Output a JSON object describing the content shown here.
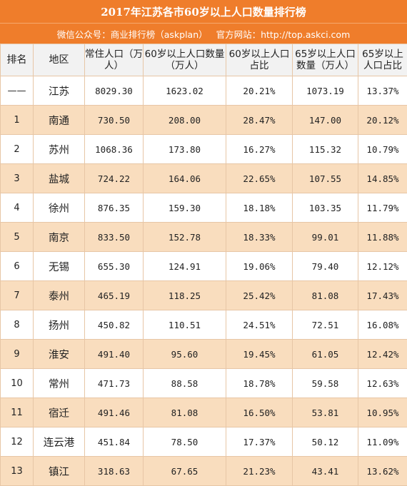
{
  "title": "2017年江苏各市60岁以上人口数量排行榜",
  "subtitle": {
    "wechat": "微信公众号：商业排行榜（askplan）",
    "website": "官方网站：http://top.askci.com"
  },
  "headers": [
    "排名",
    "地区",
    "常住人口（万人）",
    "60岁以上人口数量（万人）",
    "60岁以上人口占比",
    "65岁以上人口数量（万人）",
    "65岁以上人口占比"
  ],
  "rows": [
    {
      "rank": "——",
      "region": "江苏",
      "pop": "8029.30",
      "pop60": "1623.02",
      "ratio60": "20.21%",
      "pop65": "1073.19",
      "ratio65": "13.37%"
    },
    {
      "rank": "1",
      "region": "南通",
      "pop": "730.50",
      "pop60": "208.00",
      "ratio60": "28.47%",
      "pop65": "147.00",
      "ratio65": "20.12%"
    },
    {
      "rank": "2",
      "region": "苏州",
      "pop": "1068.36",
      "pop60": "173.80",
      "ratio60": "16.27%",
      "pop65": "115.32",
      "ratio65": "10.79%"
    },
    {
      "rank": "3",
      "region": "盐城",
      "pop": "724.22",
      "pop60": "164.06",
      "ratio60": "22.65%",
      "pop65": "107.55",
      "ratio65": "14.85%"
    },
    {
      "rank": "4",
      "region": "徐州",
      "pop": "876.35",
      "pop60": "159.30",
      "ratio60": "18.18%",
      "pop65": "103.35",
      "ratio65": "11.79%"
    },
    {
      "rank": "5",
      "region": "南京",
      "pop": "833.50",
      "pop60": "152.78",
      "ratio60": "18.33%",
      "pop65": "99.01",
      "ratio65": "11.88%"
    },
    {
      "rank": "6",
      "region": "无锡",
      "pop": "655.30",
      "pop60": "124.91",
      "ratio60": "19.06%",
      "pop65": "79.40",
      "ratio65": "12.12%"
    },
    {
      "rank": "7",
      "region": "泰州",
      "pop": "465.19",
      "pop60": "118.25",
      "ratio60": "25.42%",
      "pop65": "81.08",
      "ratio65": "17.43%"
    },
    {
      "rank": "8",
      "region": "扬州",
      "pop": "450.82",
      "pop60": "110.51",
      "ratio60": "24.51%",
      "pop65": "72.51",
      "ratio65": "16.08%"
    },
    {
      "rank": "9",
      "region": "淮安",
      "pop": "491.40",
      "pop60": "95.60",
      "ratio60": "19.45%",
      "pop65": "61.05",
      "ratio65": "12.42%"
    },
    {
      "rank": "10",
      "region": "常州",
      "pop": "471.73",
      "pop60": "88.58",
      "ratio60": "18.78%",
      "pop65": "59.58",
      "ratio65": "12.63%"
    },
    {
      "rank": "11",
      "region": "宿迁",
      "pop": "491.46",
      "pop60": "81.08",
      "ratio60": "16.50%",
      "pop65": "53.81",
      "ratio65": "10.95%"
    },
    {
      "rank": "12",
      "region": "连云港",
      "pop": "451.84",
      "pop60": "78.50",
      "ratio60": "17.37%",
      "pop65": "50.12",
      "ratio65": "11.09%"
    },
    {
      "rank": "13",
      "region": "镇江",
      "pop": "318.63",
      "pop60": "67.65",
      "ratio60": "21.23%",
      "pop65": "43.41",
      "ratio65": "13.62%"
    }
  ],
  "colors": {
    "header_orange": "#ef7d2b",
    "stripe": "#f9ddbe",
    "header_row": "#f2f2f2"
  }
}
